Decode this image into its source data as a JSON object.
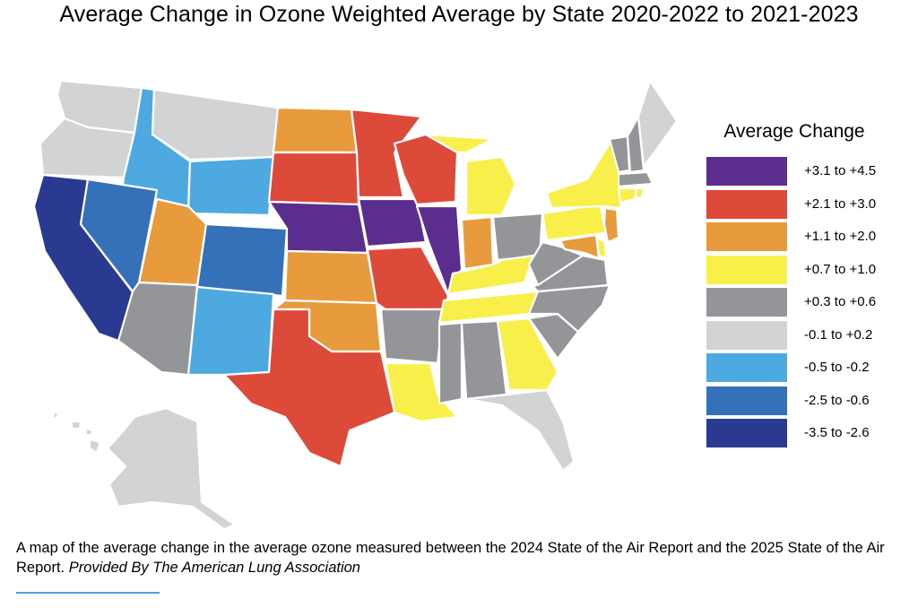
{
  "title": "Average Change in Ozone Weighted Average by State 2020-2022 to 2021-2023",
  "legend": {
    "title": "Average Change",
    "items": [
      {
        "label": "+3.1 to +4.5",
        "color": "#5b2d8e"
      },
      {
        "label": "+2.1 to +3.0",
        "color": "#dd4a3a"
      },
      {
        "label": "+1.1 to +2.0",
        "color": "#e89b3c"
      },
      {
        "label": "+0.7 to +1.0",
        "color": "#f8ef4a"
      },
      {
        "label": "+0.3 to +0.6",
        "color": "#939598"
      },
      {
        "label": "-0.1 to +0.2",
        "color": "#d1d3d4"
      },
      {
        "label": "-0.5 to -0.2",
        "color": "#4ea9e0"
      },
      {
        "label": "-2.5 to -0.6",
        "color": "#3471b8"
      },
      {
        "label": "-3.5 to -2.6",
        "color": "#2a3a90"
      }
    ]
  },
  "states": {
    "WA": 5,
    "OR": 5,
    "CA": 8,
    "ID": 6,
    "NV": 7,
    "MT": 5,
    "WY": 6,
    "UT": 2,
    "AZ": 4,
    "CO": 7,
    "NM": 6,
    "ND": 2,
    "SD": 1,
    "NE": 0,
    "KS": 2,
    "OK": 2,
    "TX": 1,
    "MN": 1,
    "IA": 0,
    "MO": 1,
    "AR": 4,
    "LA": 3,
    "WI": 1,
    "IL": 0,
    "MI": 3,
    "IN": 2,
    "OH": 4,
    "KY": 3,
    "TN": 3,
    "MS": 4,
    "AL": 4,
    "GA": 3,
    "FL": 5,
    "SC": 4,
    "NC": 4,
    "VA": 4,
    "WV": 4,
    "PA": 3,
    "NY": 3,
    "VT": 4,
    "NH": 4,
    "ME": 5,
    "MA": 4,
    "CT": 3,
    "RI": 3,
    "NJ": 2,
    "DE": 3,
    "MD": 2,
    "AK": 5,
    "HI": 5
  },
  "caption": {
    "text": "A map of the average change in the average ozone measured between the 2024 State of the Air Report and the 2025 State of the Air Report.",
    "credit": "Provided By The American Lung Association"
  }
}
